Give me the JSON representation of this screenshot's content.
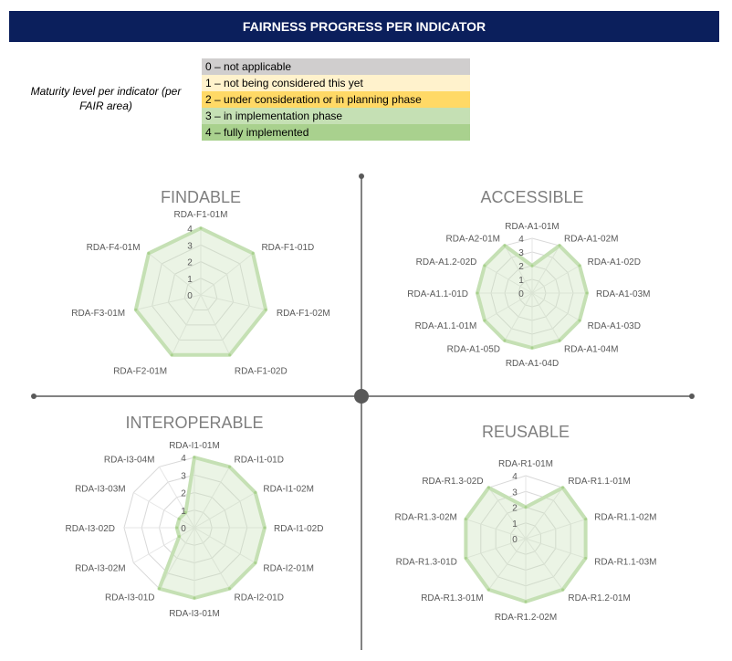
{
  "header": {
    "title": "FAIRNESS PROGRESS PER INDICATOR"
  },
  "legend": {
    "caption": "Maturity level per indicator (per FAIR area)",
    "items": [
      {
        "label": "0 – not applicable",
        "color": "#d0cece"
      },
      {
        "label": "1 – not being considered this yet",
        "color": "#fff2cc"
      },
      {
        "label": "2 – under consideration or in planning phase",
        "color": "#ffd966"
      },
      {
        "label": "3 – in implementation phase",
        "color": "#c5e0b4"
      },
      {
        "label": "4 – fully implemented",
        "color": "#a9d18e"
      }
    ]
  },
  "chart_data": [
    {
      "type": "radar",
      "title": "FINDABLE",
      "scale": [
        0,
        1,
        2,
        3,
        4
      ],
      "categories": [
        "RDA-F1-01M",
        "RDA-F1-01D",
        "RDA-F1-02M",
        "RDA-F1-02D",
        "RDA-F2-01M",
        "RDA-F3-01M",
        "RDA-F4-01M"
      ],
      "values": [
        4,
        4,
        4,
        4,
        4,
        4,
        4
      ]
    },
    {
      "type": "radar",
      "title": "ACCESSIBLE",
      "scale": [
        0,
        1,
        2,
        3,
        4
      ],
      "categories": [
        "RDA-A1-01M",
        "RDA-A1-02M",
        "RDA-A1-02D",
        "RDA-A1-03M",
        "RDA-A1-03D",
        "RDA-A1-04M",
        "RDA-A1-04D",
        "RDA-A1-05D",
        "RDA-A1.1-01M",
        "RDA-A1.1-01D",
        "RDA-A1.2-02D",
        "RDA-A2-01M"
      ],
      "values": [
        2,
        4,
        4,
        4,
        4,
        4,
        4,
        4,
        4,
        4,
        4,
        4
      ]
    },
    {
      "type": "radar",
      "title": "INTEROPERABLE",
      "scale": [
        0,
        1,
        2,
        3,
        4
      ],
      "categories": [
        "RDA-I1-01M",
        "RDA-I1-01D",
        "RDA-I1-02M",
        "RDA-I1-02D",
        "RDA-I2-01M",
        "RDA-I2-01D",
        "RDA-I3-01M",
        "RDA-I3-01D",
        "RDA-I3-02M",
        "RDA-I3-02D",
        "RDA-I3-03M",
        "RDA-I3-04M"
      ],
      "values": [
        4,
        4,
        4,
        4,
        4,
        4,
        4,
        4,
        1,
        1,
        1,
        1
      ]
    },
    {
      "type": "radar",
      "title": "REUSABLE",
      "scale": [
        0,
        1,
        2,
        3,
        4
      ],
      "categories": [
        "RDA-R1-01M",
        "RDA-R1.1-01M",
        "RDA-R1.1-02M",
        "RDA-R1.1-03M",
        "RDA-R1.2-01M",
        "RDA-R1.2-02M",
        "RDA-R1.3-01M",
        "RDA-R1.3-01D",
        "RDA-R1.3-02M",
        "RDA-R1.3-02D"
      ],
      "values": [
        2,
        4,
        4,
        4,
        4,
        4,
        4,
        4,
        4,
        4
      ]
    }
  ]
}
